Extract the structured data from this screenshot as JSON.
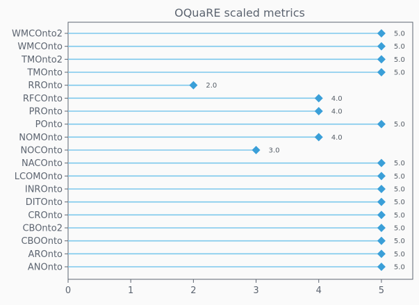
{
  "chart_data": {
    "type": "lollipop",
    "title": "OQuaRE scaled metrics",
    "xlabel": "",
    "ylabel": "",
    "xlim": [
      0,
      5.5
    ],
    "x_ticks": [
      0,
      1,
      2,
      3,
      4,
      5
    ],
    "categories": [
      "ANOnto",
      "AROnto",
      "CBOOnto",
      "CBOnto2",
      "CROnto",
      "DITOnto",
      "INROnto",
      "LCOMOnto",
      "NACOnto",
      "NOCOnto",
      "NOMOnto",
      "POnto",
      "PROnto",
      "RFCOnto",
      "RROnto",
      "TMOnto",
      "TMOnto2",
      "WMCOnto",
      "WMCOnto2"
    ],
    "values": [
      5.0,
      5.0,
      5.0,
      5.0,
      5.0,
      5.0,
      5.0,
      5.0,
      5.0,
      3.0,
      4.0,
      5.0,
      4.0,
      4.0,
      2.0,
      5.0,
      5.0,
      5.0,
      5.0
    ],
    "value_labels": [
      "5.0",
      "5.0",
      "5.0",
      "5.0",
      "5.0",
      "5.0",
      "5.0",
      "5.0",
      "5.0",
      "3.0",
      "4.0",
      "5.0",
      "4.0",
      "4.0",
      "2.0",
      "5.0",
      "5.0",
      "5.0",
      "5.0"
    ],
    "grid": false,
    "colors": {
      "stem": "#7cc8ec",
      "marker": "#3a9fd8",
      "axis": "#5c6470",
      "text": "#5c6470",
      "background": "#fafafa"
    }
  }
}
